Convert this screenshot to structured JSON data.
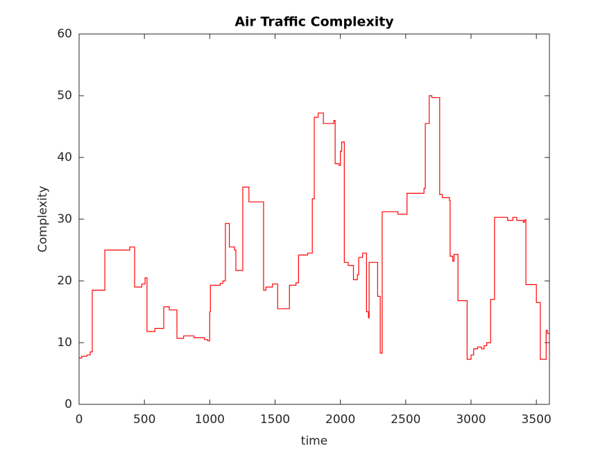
{
  "chart_data": {
    "type": "line",
    "title": "Air Traffic Complexity",
    "xlabel": "time",
    "ylabel": "Complexity",
    "xlim": [
      0,
      3600
    ],
    "xticks": [
      0,
      500,
      1000,
      1500,
      2000,
      2500,
      3000,
      3500
    ],
    "ylim": [
      0,
      60
    ],
    "yticks": [
      0,
      10,
      20,
      30,
      40,
      50,
      60
    ],
    "grid": false,
    "series": [
      {
        "color": "#ff0000",
        "x": [
          0,
          20,
          20,
          60,
          60,
          85,
          85,
          101,
          101,
          197,
          197,
          388,
          388,
          425,
          425,
          480,
          480,
          505,
          505,
          520,
          520,
          580,
          580,
          648,
          648,
          690,
          690,
          749,
          749,
          800,
          800,
          880,
          880,
          960,
          960,
          985,
          985,
          1000,
          1000,
          1005,
          1005,
          1080,
          1080,
          1100,
          1100,
          1120,
          1120,
          1150,
          1150,
          1190,
          1190,
          1200,
          1200,
          1253,
          1253,
          1300,
          1300,
          1412,
          1412,
          1430,
          1430,
          1480,
          1480,
          1520,
          1520,
          1610,
          1610,
          1660,
          1660,
          1680,
          1680,
          1750,
          1750,
          1785,
          1785,
          1800,
          1800,
          1830,
          1830,
          1870,
          1870,
          1950,
          1950,
          1960,
          1960,
          1990,
          1990,
          2000,
          2000,
          2010,
          2010,
          2030,
          2030,
          2060,
          2060,
          2100,
          2100,
          2130,
          2130,
          2140,
          2140,
          2170,
          2170,
          2200,
          2200,
          2215,
          2215,
          2220,
          2220,
          2285,
          2285,
          2305,
          2305,
          2320,
          2320,
          2440,
          2440,
          2510,
          2510,
          2640,
          2640,
          2650,
          2650,
          2680,
          2680,
          2700,
          2700,
          2760,
          2760,
          2780,
          2780,
          2835,
          2835,
          2840,
          2840,
          2860,
          2860,
          2870,
          2870,
          2900,
          2900,
          2970,
          2970,
          3000,
          3000,
          3020,
          3020,
          3050,
          3050,
          3080,
          3080,
          3100,
          3100,
          3120,
          3120,
          3150,
          3150,
          3180,
          3180,
          3280,
          3280,
          3320,
          3320,
          3350,
          3350,
          3400,
          3400,
          3410,
          3410,
          3420,
          3420,
          3500,
          3500,
          3530,
          3530,
          3575,
          3575,
          3585,
          3585,
          3600,
          3600
        ],
        "values": [
          7.5,
          7.5,
          7.8,
          7.8,
          8,
          8,
          8.5,
          8.5,
          18.5,
          18.5,
          25,
          25,
          25.5,
          25.5,
          19,
          19,
          19.5,
          19.5,
          20.5,
          20.5,
          11.8,
          11.8,
          12.3,
          12.3,
          15.8,
          15.8,
          15.3,
          15.3,
          10.7,
          10.7,
          11.1,
          11.1,
          10.8,
          10.8,
          10.5,
          10.5,
          10.3,
          10.3,
          15,
          15,
          19.3,
          19.3,
          19.6,
          19.6,
          20,
          20,
          29.3,
          29.3,
          25.5,
          25.5,
          25,
          25,
          21.7,
          21.7,
          35.2,
          35.2,
          32.8,
          32.8,
          18.5,
          18.5,
          19,
          19,
          19.5,
          19.5,
          15.5,
          15.5,
          19.3,
          19.3,
          19.7,
          19.7,
          24.2,
          24.2,
          24.5,
          24.5,
          33.3,
          33.3,
          46.5,
          46.5,
          47.2,
          47.2,
          45.5,
          45.5,
          46,
          46,
          39,
          39,
          38.7,
          38.7,
          41,
          41,
          42.5,
          42.5,
          23,
          23,
          22.5,
          22.5,
          20.2,
          20.2,
          21,
          21,
          23.8,
          23.8,
          24.5,
          24.5,
          15,
          15,
          14,
          14,
          23,
          23,
          17.5,
          17.5,
          8.3,
          8.3,
          31.2,
          31.2,
          30.8,
          30.8,
          34.2,
          34.2,
          35,
          35,
          45.5,
          45.5,
          50,
          50,
          49.7,
          49.7,
          34,
          34,
          33.5,
          33.5,
          33,
          33,
          24,
          24,
          23.2,
          23.2,
          24.3,
          24.3,
          16.8,
          16.8,
          7.3,
          7.3,
          8,
          8,
          9,
          9,
          9.3,
          9.3,
          9,
          9,
          9.5,
          9.5,
          10,
          10,
          17,
          17,
          30.3,
          30.3,
          29.8,
          29.8,
          30.3,
          30.3,
          29.8,
          29.8,
          29.5,
          29.5,
          29.9,
          29.9,
          19.4,
          19.4,
          16.5,
          16.5,
          7.3,
          7.3,
          12,
          12,
          11.5,
          11.5,
          11.5
        ]
      }
    ]
  }
}
